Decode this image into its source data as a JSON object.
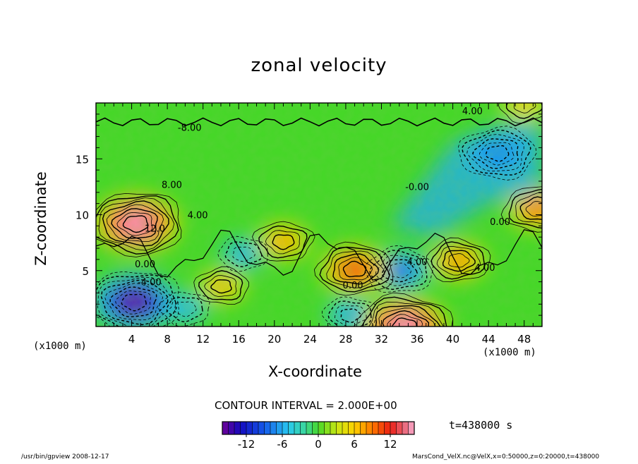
{
  "title": "zonal velocity",
  "contour_interval_text": "CONTOUR INTERVAL = 2.000E+00",
  "time_label": "t=438000  s",
  "footer_left": "/usr/bin/gpview  2008-12-17",
  "footer_right": "MarsCond_VelX.nc@VelX,x=0:50000,z=0:20000,t=438000",
  "chart_data": {
    "type": "heatmap",
    "title": "zonal velocity",
    "xlabel": "X-coordinate",
    "ylabel": "Z-coordinate",
    "x_unit": "(x1000 m)",
    "xlim": [
      0,
      50
    ],
    "ylim": [
      0,
      20
    ],
    "x_ticks": [
      4,
      8,
      12,
      16,
      20,
      24,
      28,
      32,
      36,
      40,
      44,
      48
    ],
    "y_ticks": [
      5,
      10,
      15
    ],
    "contour_interval": 2.0,
    "colorbar": {
      "min": -16,
      "max": 16,
      "ticks": [
        -12,
        -6,
        0,
        6,
        12
      ]
    },
    "contour_labels": [
      {
        "text": "4.00",
        "x": 42.2,
        "z": 19.0
      },
      {
        "text": "-8.00",
        "x": 10.5,
        "z": 17.5
      },
      {
        "text": "8.00",
        "x": 8.5,
        "z": 12.4
      },
      {
        "text": "4.00",
        "x": 11.4,
        "z": 9.7
      },
      {
        "text": "12.0",
        "x": 6.6,
        "z": 8.5
      },
      {
        "text": "0.00",
        "x": 5.5,
        "z": 5.3
      },
      {
        "text": "-4.00",
        "x": 6.0,
        "z": 3.7
      },
      {
        "text": "-0.00",
        "x": 36.0,
        "z": 12.2
      },
      {
        "text": "4.00",
        "x": 36.0,
        "z": 5.5
      },
      {
        "text": "0.00",
        "x": 28.8,
        "z": 3.4
      },
      {
        "text": "4.00",
        "x": 43.6,
        "z": 5.0
      },
      {
        "text": "0.00",
        "x": 45.3,
        "z": 9.1
      }
    ],
    "features": [
      {
        "sign": "positive",
        "x": 4.5,
        "z": 9.2,
        "peak": 16
      },
      {
        "sign": "negative",
        "x": 4.3,
        "z": 2.2,
        "peak": -16
      },
      {
        "sign": "positive",
        "x": 34.6,
        "z": 0.0,
        "peak": 16
      },
      {
        "sign": "positive",
        "x": 29.0,
        "z": 5.1,
        "peak": 12
      },
      {
        "sign": "positive",
        "x": 21.0,
        "z": 7.6,
        "peak": 8
      },
      {
        "sign": "positive",
        "x": 40.6,
        "z": 5.9,
        "peak": 9
      },
      {
        "sign": "positive",
        "x": 49.5,
        "z": 10.5,
        "peak": 10
      },
      {
        "sign": "positive",
        "x": 14.1,
        "z": 3.6,
        "peak": 7
      },
      {
        "sign": "positive",
        "x": 48.0,
        "z": 19.8,
        "peak": 6
      },
      {
        "sign": "negative",
        "x": 45.0,
        "z": 15.5,
        "peak": -12
      },
      {
        "sign": "negative",
        "x": 34.0,
        "z": 5.0,
        "peak": -10
      },
      {
        "sign": "negative",
        "x": 16.5,
        "z": 6.5,
        "peak": -6
      },
      {
        "sign": "negative",
        "x": 28.5,
        "z": 1.0,
        "peak": -7
      },
      {
        "sign": "negative",
        "x": 10.0,
        "z": 1.6,
        "peak": -6
      }
    ]
  }
}
